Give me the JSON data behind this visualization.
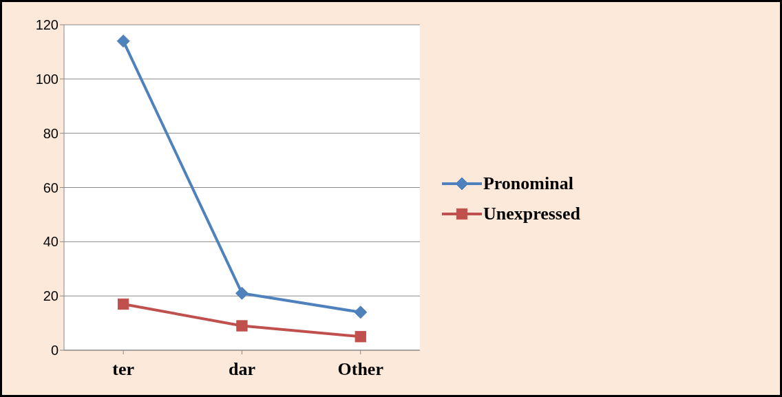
{
  "chart_data": {
    "type": "line",
    "categories": [
      "ter",
      "dar",
      "Other"
    ],
    "series": [
      {
        "name": "Pronominal",
        "color": "#4f81bd",
        "values": [
          114,
          21,
          14
        ],
        "marker": "diamond"
      },
      {
        "name": "Unexpressed",
        "color": "#c0504d",
        "values": [
          17,
          9,
          5
        ],
        "marker": "square"
      }
    ],
    "ylim": [
      0,
      120
    ],
    "yticks": [
      0,
      20,
      40,
      60,
      80,
      100,
      120
    ],
    "grid": "y",
    "legend": "right",
    "line_style": "solid"
  }
}
